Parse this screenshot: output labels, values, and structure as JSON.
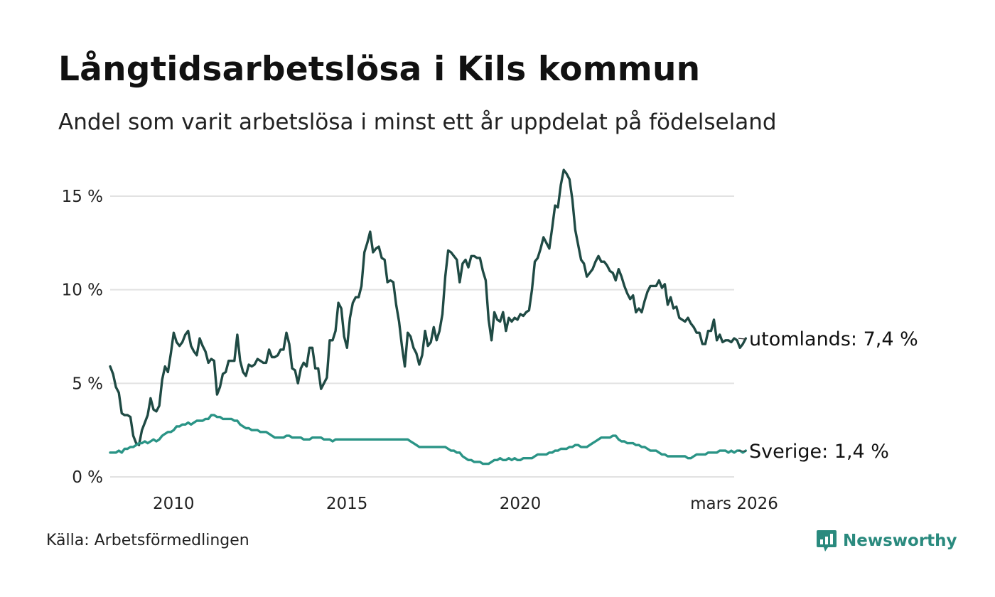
{
  "title": "Långtidsarbetslösa i Kils kommun",
  "subtitle": "Andel som varit arbetslösa i minst ett år uppdelat på födelseland",
  "source": "Källa: Arbetsförmedlingen",
  "brand": {
    "name": "Newsworthy",
    "logo_icon": "newsworthy-logo-icon",
    "color": "#2a8a7e"
  },
  "chart_data": {
    "type": "line",
    "title": "Långtidsarbetslösa i Kils kommun",
    "xlabel": "",
    "ylabel": "",
    "x_start": 2008.17,
    "x_step": 0.0833333,
    "xlim": [
      2008.17,
      2026.17
    ],
    "ylim": [
      0,
      16.5
    ],
    "grid": true,
    "y_ticks": [
      {
        "value": 0,
        "label": "0 %"
      },
      {
        "value": 5,
        "label": "5 %"
      },
      {
        "value": 10,
        "label": "10 %"
      },
      {
        "value": 15,
        "label": "15 %"
      }
    ],
    "x_ticks": [
      {
        "value": 2010,
        "label": "2010"
      },
      {
        "value": 2015,
        "label": "2015"
      },
      {
        "value": 2020,
        "label": "2020"
      },
      {
        "value": 2026.17,
        "label": "mars 2026"
      }
    ],
    "series": [
      {
        "name": "utomlands",
        "end_label": "utomlands: 7,4 %",
        "color": "#1f4a44",
        "values": [
          5.9,
          5.5,
          4.8,
          4.5,
          3.4,
          3.3,
          3.3,
          3.2,
          2.2,
          1.8,
          1.7,
          2.5,
          2.9,
          3.3,
          4.2,
          3.6,
          3.5,
          3.8,
          5.2,
          5.9,
          5.6,
          6.6,
          7.7,
          7.2,
          7,
          7.2,
          7.6,
          7.8,
          7,
          6.7,
          6.5,
          7.4,
          7,
          6.7,
          6.1,
          6.3,
          6.2,
          4.4,
          4.8,
          5.5,
          5.6,
          6.2,
          6.2,
          6.2,
          7.6,
          6.2,
          5.6,
          5.4,
          6,
          5.9,
          6,
          6.3,
          6.2,
          6.1,
          6.1,
          6.8,
          6.4,
          6.4,
          6.5,
          6.8,
          6.8,
          7.7,
          7.1,
          5.8,
          5.7,
          5,
          5.8,
          6.1,
          5.9,
          6.9,
          6.9,
          5.8,
          5.8,
          4.7,
          5,
          5.3,
          7.3,
          7.3,
          7.8,
          9.3,
          9,
          7.5,
          6.9,
          8.5,
          9.3,
          9.6,
          9.6,
          10.2,
          12,
          12.5,
          13.1,
          12,
          12.2,
          12.3,
          11.7,
          11.6,
          10.4,
          10.5,
          10.4,
          9.2,
          8.3,
          7,
          5.9,
          7.7,
          7.5,
          6.9,
          6.6,
          6,
          6.5,
          7.8,
          7,
          7.2,
          8,
          7.3,
          7.8,
          8.7,
          10.7,
          12.1,
          12,
          11.8,
          11.6,
          10.4,
          11.4,
          11.6,
          11.2,
          11.8,
          11.8,
          11.7,
          11.7,
          11,
          10.5,
          8.4,
          7.3,
          8.8,
          8.4,
          8.3,
          8.8,
          7.8,
          8.5,
          8.3,
          8.5,
          8.4,
          8.7,
          8.6,
          8.8,
          8.9,
          10,
          11.5,
          11.7,
          12.2,
          12.8,
          12.5,
          12.2,
          13.3,
          14.5,
          14.4,
          15.6,
          16.4,
          16.2,
          15.9,
          14.8,
          13.2,
          12.4,
          11.6,
          11.4,
          10.7,
          10.9,
          11.1,
          11.5,
          11.8,
          11.5,
          11.5,
          11.3,
          11,
          10.9,
          10.5,
          11.1,
          10.7,
          10.2,
          9.8,
          9.5,
          9.7,
          8.8,
          9,
          8.8,
          9.4,
          9.9,
          10.2,
          10.2,
          10.2,
          10.5,
          10.1,
          10.3,
          9.2,
          9.6,
          9,
          9.1,
          8.5,
          8.4,
          8.3,
          8.5,
          8.2,
          8,
          7.7,
          7.7,
          7.1,
          7.1,
          7.8,
          7.8,
          8.4,
          7.3,
          7.6,
          7.2,
          7.3,
          7.3,
          7.2,
          7.4,
          7.3,
          6.9,
          7.1,
          7.4
        ]
      },
      {
        "name": "Sverige",
        "end_label": "Sverige: 1,4 %",
        "color": "#2a9486",
        "values": [
          1.3,
          1.3,
          1.3,
          1.4,
          1.3,
          1.5,
          1.5,
          1.6,
          1.6,
          1.7,
          1.8,
          1.8,
          1.9,
          1.8,
          1.9,
          2,
          1.9,
          2,
          2.2,
          2.3,
          2.4,
          2.4,
          2.5,
          2.7,
          2.7,
          2.8,
          2.8,
          2.9,
          2.8,
          2.9,
          3,
          3,
          3,
          3.1,
          3.1,
          3.3,
          3.3,
          3.2,
          3.2,
          3.1,
          3.1,
          3.1,
          3.1,
          3,
          3,
          2.8,
          2.7,
          2.6,
          2.6,
          2.5,
          2.5,
          2.5,
          2.4,
          2.4,
          2.4,
          2.3,
          2.2,
          2.1,
          2.1,
          2.1,
          2.1,
          2.2,
          2.2,
          2.1,
          2.1,
          2.1,
          2.1,
          2,
          2,
          2,
          2.1,
          2.1,
          2.1,
          2.1,
          2,
          2,
          2,
          1.9,
          2,
          2,
          2,
          2,
          2,
          2,
          2,
          2,
          2,
          2,
          2,
          2,
          2,
          2,
          2,
          2,
          2,
          2,
          2,
          2,
          2,
          2,
          2,
          2,
          2,
          2,
          1.9,
          1.8,
          1.7,
          1.6,
          1.6,
          1.6,
          1.6,
          1.6,
          1.6,
          1.6,
          1.6,
          1.6,
          1.6,
          1.5,
          1.4,
          1.4,
          1.3,
          1.3,
          1.1,
          1,
          0.9,
          0.9,
          0.8,
          0.8,
          0.8,
          0.7,
          0.7,
          0.7,
          0.8,
          0.9,
          0.9,
          1,
          0.9,
          0.9,
          1,
          0.9,
          1,
          0.9,
          0.9,
          1,
          1,
          1,
          1,
          1.1,
          1.2,
          1.2,
          1.2,
          1.2,
          1.3,
          1.3,
          1.4,
          1.4,
          1.5,
          1.5,
          1.5,
          1.6,
          1.6,
          1.7,
          1.7,
          1.6,
          1.6,
          1.6,
          1.7,
          1.8,
          1.9,
          2,
          2.1,
          2.1,
          2.1,
          2.1,
          2.2,
          2.2,
          2,
          1.9,
          1.9,
          1.8,
          1.8,
          1.8,
          1.7,
          1.7,
          1.6,
          1.6,
          1.5,
          1.4,
          1.4,
          1.4,
          1.3,
          1.2,
          1.2,
          1.1,
          1.1,
          1.1,
          1.1,
          1.1,
          1.1,
          1.1,
          1,
          1,
          1.1,
          1.2,
          1.2,
          1.2,
          1.2,
          1.3,
          1.3,
          1.3,
          1.3,
          1.4,
          1.4,
          1.4,
          1.3,
          1.4,
          1.3,
          1.4,
          1.4,
          1.3,
          1.4
        ]
      }
    ]
  }
}
